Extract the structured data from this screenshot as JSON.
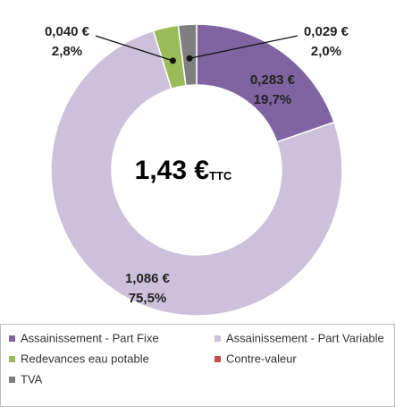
{
  "chart_data": {
    "type": "donut",
    "center_label": "1,43 €",
    "center_sub": "TTC",
    "categories": [
      "Assainissement - Part Fixe",
      "Assainissement - Part Variable",
      "Redevances eau potable",
      "Contre-valeur",
      "TVA"
    ],
    "colors": [
      "#8064a2",
      "#ccc1da",
      "#9bbb59",
      "#c0504d",
      "#7f7f7f"
    ],
    "values": [
      0.283,
      1.086,
      0.04,
      0,
      0.029
    ],
    "value_labels": [
      "0,283 €",
      "1,086 €",
      "0,040 €",
      null,
      "0,029 €"
    ],
    "percents": [
      19.7,
      75.5,
      2.8,
      null,
      2.0
    ],
    "percent_labels": [
      "19,7%",
      "75,5%",
      "2,8%",
      null,
      "2,0%"
    ],
    "legend": "bottom"
  }
}
